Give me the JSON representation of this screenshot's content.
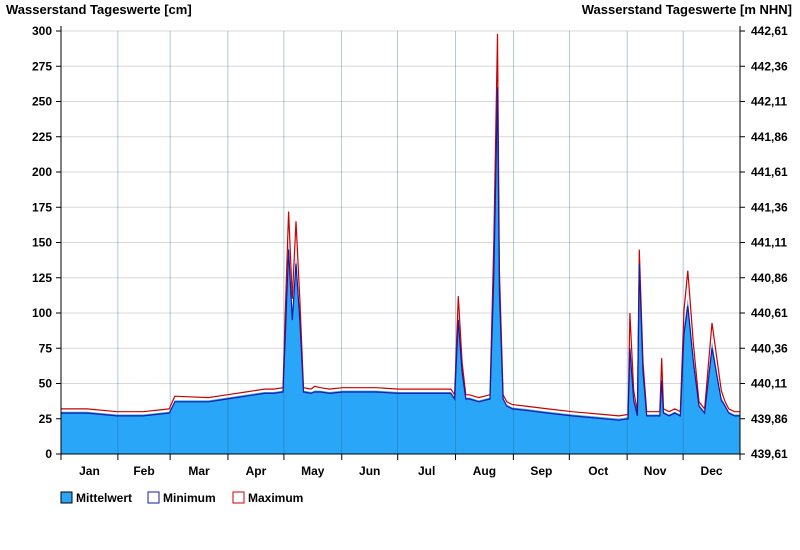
{
  "chart_data": {
    "type": "area",
    "left_axis_title": "Wasserstand Tageswerte [cm]",
    "right_axis_title": "Wasserstand Tageswerte [m NHN]",
    "y_left": {
      "min": 0,
      "max": 300,
      "ticks": [
        "0",
        "25",
        "50",
        "75",
        "100",
        "125",
        "150",
        "175",
        "200",
        "225",
        "250",
        "275",
        "300"
      ]
    },
    "y_right": {
      "min": 439.61,
      "max": 442.61,
      "ticks": [
        "439,61",
        "439,86",
        "440,11",
        "440,36",
        "440,61",
        "440,86",
        "441,11",
        "441,36",
        "441,61",
        "441,86",
        "442,11",
        "442,36",
        "442,61"
      ]
    },
    "months": [
      "Jan",
      "Feb",
      "Mar",
      "Apr",
      "May",
      "Jun",
      "Jul",
      "Aug",
      "Sep",
      "Oct",
      "Nov",
      "Dec"
    ],
    "grid": "horizontal",
    "legend_position": "bottom-left",
    "legend": [
      {
        "name": "Mittelwert",
        "color": "#2aa6f8"
      },
      {
        "name": "Minimum",
        "color": "#1a1aa0"
      },
      {
        "name": "Maximum",
        "color": "#cc0000"
      }
    ],
    "colors": {
      "mean_fill": "#2aa6f8",
      "min_line": "#1a1aa0",
      "max_line": "#cc0000"
    },
    "series": [
      {
        "name": "Mittelwert",
        "x": [
          1,
          15,
          31,
          45,
          59,
          62,
          80,
          90,
          100,
          110,
          115,
          120,
          121,
          123,
          125,
          127,
          129,
          131,
          135,
          137,
          140,
          145,
          152,
          170,
          182,
          200,
          210,
          212,
          214,
          216,
          218,
          220,
          225,
          231,
          233,
          235,
          236,
          238,
          240,
          243,
          250,
          262,
          275,
          292,
          300,
          305,
          306,
          308,
          310,
          311,
          313,
          315,
          320,
          322,
          323,
          324,
          327,
          330,
          333,
          335,
          337,
          340,
          343,
          346,
          350,
          355,
          357,
          359,
          362,
          365
        ],
        "values": [
          30,
          30,
          28,
          28,
          30,
          38,
          38,
          40,
          42,
          44,
          44,
          45,
          80,
          150,
          100,
          140,
          100,
          45,
          44,
          45,
          45,
          44,
          45,
          45,
          44,
          44,
          44,
          40,
          100,
          60,
          40,
          40,
          38,
          40,
          130,
          265,
          120,
          40,
          35,
          33,
          32,
          30,
          28,
          26,
          25,
          26,
          80,
          40,
          28,
          140,
          60,
          28,
          28,
          28,
          55,
          30,
          28,
          30,
          28,
          90,
          110,
          70,
          35,
          30,
          80,
          40,
          35,
          30,
          28,
          28
        ]
      },
      {
        "name": "Minimum",
        "x": [
          1,
          15,
          31,
          45,
          59,
          62,
          80,
          90,
          100,
          110,
          115,
          120,
          121,
          123,
          125,
          127,
          129,
          131,
          135,
          137,
          140,
          145,
          152,
          170,
          182,
          200,
          210,
          212,
          214,
          216,
          218,
          220,
          225,
          231,
          233,
          235,
          236,
          238,
          240,
          243,
          250,
          262,
          275,
          292,
          300,
          305,
          306,
          308,
          310,
          311,
          313,
          315,
          320,
          322,
          323,
          324,
          327,
          330,
          333,
          335,
          337,
          340,
          343,
          346,
          350,
          355,
          357,
          359,
          362,
          365
        ],
        "values": [
          29,
          29,
          27,
          27,
          29,
          37,
          37,
          39,
          41,
          43,
          43,
          44,
          75,
          145,
          95,
          135,
          95,
          44,
          43,
          44,
          44,
          43,
          44,
          44,
          43,
          43,
          43,
          39,
          95,
          58,
          39,
          39,
          37,
          39,
          125,
          260,
          115,
          39,
          34,
          32,
          31,
          29,
          27,
          25,
          24,
          25,
          75,
          38,
          27,
          135,
          58,
          27,
          27,
          27,
          52,
          29,
          27,
          29,
          27,
          85,
          105,
          65,
          34,
          29,
          75,
          38,
          34,
          29,
          27,
          27
        ]
      },
      {
        "name": "Maximum",
        "x": [
          1,
          15,
          31,
          45,
          59,
          62,
          80,
          90,
          100,
          110,
          115,
          120,
          121,
          123,
          125,
          127,
          129,
          131,
          135,
          137,
          140,
          145,
          152,
          170,
          182,
          200,
          210,
          212,
          214,
          216,
          218,
          220,
          225,
          231,
          233,
          235,
          236,
          238,
          240,
          243,
          250,
          262,
          275,
          292,
          300,
          305,
          306,
          308,
          310,
          311,
          313,
          315,
          320,
          322,
          323,
          324,
          327,
          330,
          333,
          335,
          337,
          340,
          343,
          346,
          350,
          355,
          357,
          359,
          362,
          365
        ],
        "values": [
          32,
          32,
          30,
          30,
          32,
          41,
          40,
          42,
          44,
          46,
          46,
          47,
          90,
          172,
          110,
          165,
          110,
          47,
          46,
          48,
          47,
          46,
          47,
          47,
          46,
          46,
          46,
          42,
          112,
          65,
          42,
          42,
          40,
          42,
          150,
          298,
          130,
          42,
          37,
          35,
          34,
          32,
          30,
          28,
          27,
          28,
          100,
          45,
          30,
          145,
          65,
          30,
          30,
          30,
          68,
          32,
          30,
          32,
          30,
          102,
          130,
          78,
          37,
          32,
          93,
          45,
          37,
          32,
          30,
          30
        ]
      }
    ]
  }
}
